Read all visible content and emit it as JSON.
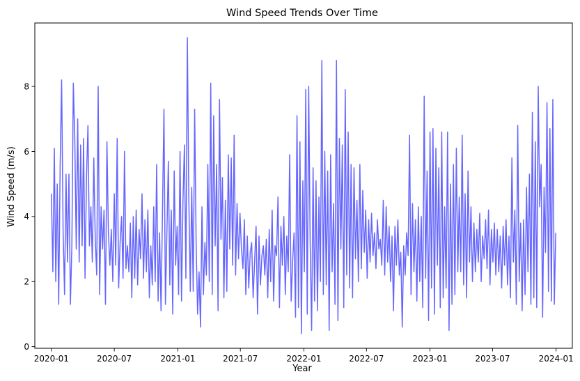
{
  "chart_data": {
    "type": "line",
    "title": "Wind Speed Trends Over Time",
    "xlabel": "Year",
    "ylabel": "Wind Speed (m/s)",
    "xlim": [
      "2019-11-14",
      "2024-02-17"
    ],
    "ylim": [
      -0.05,
      9.95
    ],
    "x_ticks": [
      "2020-01",
      "2020-07",
      "2021-01",
      "2021-07",
      "2022-01",
      "2022-07",
      "2023-01",
      "2023-07",
      "2024-01"
    ],
    "y_ticks": [
      0,
      2,
      4,
      6,
      8
    ],
    "grid": false,
    "legend": false,
    "line_color": "#6666ff",
    "series": [
      {
        "x_start": "2020-01-01",
        "x_end": "2023-12-31",
        "x_step": "10 days",
        "values": [
          4.7,
          2.3,
          6.1,
          2.0,
          5.0,
          1.3,
          5.6,
          8.2,
          3.6,
          1.6,
          5.3,
          2.6,
          5.3,
          1.3,
          3.1,
          8.1,
          6.4,
          3.0,
          7.0,
          2.6,
          6.2,
          3.1,
          6.4,
          2.1,
          5.2,
          6.8,
          3.1,
          4.3,
          2.6,
          5.8,
          3.3,
          2.2,
          8.0,
          1.6,
          4.3,
          3.0,
          4.2,
          1.3,
          6.3,
          3.5,
          2.5,
          3.6,
          2.0,
          4.7,
          2.5,
          6.4,
          1.8,
          3.2,
          4.0,
          2.1,
          6.0,
          2.4,
          3.1,
          2.3,
          3.8,
          1.5,
          4.0,
          2.1,
          4.2,
          1.9,
          3.6,
          2.7,
          4.7,
          2.1,
          3.9,
          2.3,
          4.2,
          1.5,
          3.1,
          1.9,
          4.3,
          2.0,
          5.6,
          1.4,
          3.5,
          1.1,
          4.2,
          7.3,
          1.3,
          3.5,
          5.7,
          1.9,
          4.2,
          1.0,
          5.4,
          2.5,
          3.7,
          1.6,
          6.0,
          1.4,
          4.5,
          6.2,
          2.1,
          9.5,
          4.6,
          1.7,
          4.9,
          1.7,
          7.3,
          3.2,
          1.0,
          2.3,
          0.6,
          4.3,
          1.6,
          3.2,
          2.2,
          5.6,
          2.0,
          8.1,
          1.6,
          7.1,
          3.1,
          5.6,
          1.1,
          7.6,
          3.3,
          5.2,
          1.5,
          4.5,
          1.7,
          5.9,
          3.0,
          5.8,
          2.5,
          6.5,
          2.2,
          4.4,
          2.7,
          4.1,
          3.0,
          2.4,
          3.9,
          1.6,
          3.4,
          1.8,
          2.9,
          3.2,
          1.5,
          2.6,
          3.7,
          1.0,
          3.4,
          1.9,
          2.8,
          3.1,
          2.2,
          3.3,
          1.5,
          3.6,
          2.0,
          4.2,
          1.4,
          3.1,
          2.8,
          4.6,
          1.2,
          3.7,
          2.5,
          4.0,
          1.6,
          3.4,
          2.3,
          5.9,
          1.4,
          2.6,
          3.5,
          0.9,
          7.1,
          1.2,
          6.3,
          0.4,
          5.1,
          2.3,
          7.9,
          1.0,
          8.0,
          3.2,
          0.5,
          5.5,
          1.4,
          5.1,
          1.1,
          4.6,
          2.0,
          8.8,
          1.6,
          6.0,
          1.9,
          5.4,
          0.5,
          5.9,
          2.3,
          4.4,
          1.3,
          8.8,
          0.8,
          6.4,
          3.0,
          6.2,
          1.2,
          7.9,
          2.2,
          6.6,
          1.8,
          5.6,
          1.5,
          5.5,
          2.7,
          4.5,
          2.0,
          5.6,
          2.4,
          4.8,
          2.9,
          4.2,
          2.1,
          3.9,
          2.6,
          4.1,
          2.8,
          3.5,
          2.4,
          3.9,
          3.0,
          3.3,
          2.5,
          4.5,
          2.2,
          4.3,
          2.6,
          3.7,
          2.0,
          3.4,
          1.1,
          3.7,
          2.5,
          3.9,
          2.2,
          2.9,
          0.6,
          3.1,
          2.2,
          3.5,
          2.8,
          6.5,
          1.6,
          4.4,
          2.3,
          3.9,
          1.4,
          4.3,
          2.0,
          4.0,
          1.2,
          7.7,
          2.1,
          5.4,
          0.8,
          6.6,
          1.8,
          6.7,
          1.0,
          6.1,
          2.5,
          5.5,
          1.2,
          6.6,
          1.5,
          4.3,
          1.8,
          6.6,
          0.5,
          5.0,
          1.3,
          5.6,
          1.6,
          6.1,
          2.3,
          4.6,
          2.3,
          6.5,
          1.9,
          4.7,
          1.5,
          5.4,
          2.6,
          4.3,
          2.0,
          3.8,
          2.3,
          3.6,
          2.6,
          4.1,
          2.0,
          3.4,
          2.7,
          3.9,
          2.4,
          4.2,
          1.9,
          3.6,
          2.6,
          3.8,
          2.2,
          3.6,
          2.3,
          3.4,
          1.8,
          3.7,
          2.5,
          3.9,
          1.9,
          3.4,
          1.5,
          5.8,
          2.6,
          4.2,
          1.3,
          6.8,
          2.0,
          3.8,
          1.1,
          3.9,
          1.6,
          4.9,
          2.3,
          5.3,
          1.3,
          7.2,
          1.5,
          6.3,
          1.2,
          8.0,
          4.3,
          5.6,
          0.9,
          4.9,
          2.9,
          7.5,
          1.7,
          6.7,
          1.4,
          7.6,
          1.3,
          3.5
        ]
      }
    ]
  }
}
